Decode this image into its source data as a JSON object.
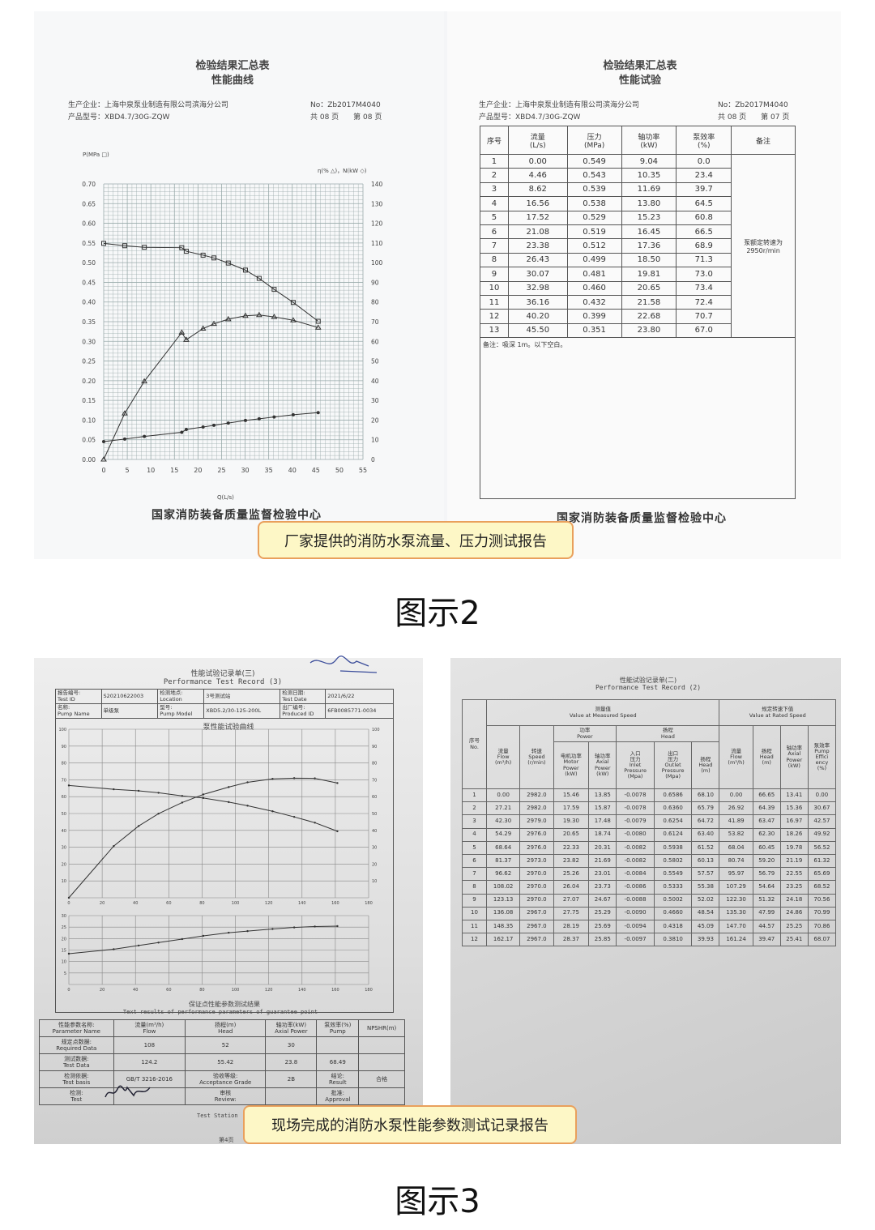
{
  "figure2": {
    "caption": "图示2",
    "callout": "厂家提供的消防水泵流量、压力测试报告",
    "left_page": {
      "title": "检验结果汇总表",
      "subtitle": "性能曲线",
      "company": "生产企业：上海中泉泵业制造有限公司滨海分公司",
      "model": "产品型号：XBD4.7/30G-ZQW",
      "number": "No：Zb2017M4040",
      "pages": "共 08 页　　第 08 页",
      "left_axis_label": "P(MPa □)",
      "right_axis_label": "η(% △)，N(kW ◇)",
      "x_axis_label": "Q(L/s)",
      "footer": "国家消防装备质量监督检验中心"
    },
    "right_page": {
      "title": "检验结果汇总表",
      "subtitle": "性能试验",
      "company": "生产企业：上海中泉泵业制造有限公司滨海分公司",
      "model": "产品型号：XBD4.7/30G-ZQW",
      "number": "No：Zb2017M4040",
      "pages": "共 08 页　　第 07 页",
      "headers": [
        "序号",
        "流量\n(L/s)",
        "压力\n(MPa)",
        "轴功率\n(kW)",
        "泵效率\n(%)",
        "备注"
      ],
      "remark": "泵额定转速为\n2950r/min",
      "note": "备注：吸深 1m。以下空白。",
      "rows": [
        [
          "1",
          "0.00",
          "0.549",
          "9.04",
          "0.0"
        ],
        [
          "2",
          "4.46",
          "0.543",
          "10.35",
          "23.4"
        ],
        [
          "3",
          "8.62",
          "0.539",
          "11.69",
          "39.7"
        ],
        [
          "4",
          "16.56",
          "0.538",
          "13.80",
          "64.5"
        ],
        [
          "5",
          "17.52",
          "0.529",
          "15.23",
          "60.8"
        ],
        [
          "6",
          "21.08",
          "0.519",
          "16.45",
          "66.5"
        ],
        [
          "7",
          "23.38",
          "0.512",
          "17.36",
          "68.9"
        ],
        [
          "8",
          "26.43",
          "0.499",
          "18.50",
          "71.3"
        ],
        [
          "9",
          "30.07",
          "0.481",
          "19.81",
          "73.0"
        ],
        [
          "10",
          "32.98",
          "0.460",
          "20.65",
          "73.4"
        ],
        [
          "11",
          "36.16",
          "0.432",
          "21.58",
          "72.4"
        ],
        [
          "12",
          "40.20",
          "0.399",
          "22.68",
          "70.7"
        ],
        [
          "13",
          "45.50",
          "0.351",
          "23.80",
          "67.0"
        ]
      ],
      "footer": "国家消防装备质量监督检验中心"
    }
  },
  "figure3": {
    "caption": "图示3",
    "callout": "现场完成的消防水泵性能参数测试记录报告",
    "left_page": {
      "title": "性能试验记录单(三)",
      "subtitle": "Performance Test Record (3)",
      "header": [
        [
          "报告编号:\nTest ID",
          "S20210622003",
          "检测地点:\nLocation",
          "3号测试站",
          "检测日期:\nTest Date",
          "2021/6/22"
        ],
        [
          "名称:\nPump Name",
          "单级泵",
          "型号:\nPump Model",
          "XBD5.2/30-125-200L",
          "出厂编号:\nProduced ID",
          "6FB0085771-0034"
        ]
      ],
      "chart_title": "泵性能试验曲线",
      "guarantee_title": "保证点性能参数测试结果",
      "guarantee_subtitle": "Text results of performance parameters of guarantee point",
      "guarantee_rows": [
        [
          "性能参数名称:\nParameter Name",
          "流量(m³/h)\nFlow",
          "扬程(m)\nHead",
          "轴功率(kW)\nAxial Power",
          "泵效率(%)\nPump",
          "NPSHR(m)"
        ],
        [
          "规定点数据:\nRequired Data",
          "108",
          "52",
          "30",
          "",
          ""
        ],
        [
          "测试数据:\nTest Data",
          "124.2",
          "55.42",
          "23.8",
          "68.49",
          ""
        ],
        [
          "检测依据:\nTest basis",
          "GB/T 3216-2016",
          "验收等级:\nAcceptance Grade",
          "2B",
          "结论:\nResult",
          "合格"
        ],
        [
          "检测:\nTest",
          "",
          "审核\nReview:",
          "",
          "批准:\nApproval",
          ""
        ]
      ],
      "station": "Test Station",
      "page_no": "第4页"
    },
    "right_page": {
      "title": "性能试验记录单(二)",
      "subtitle": "Performance Test Record (2)",
      "group_measured": "测量值\nValue at Measured Speed",
      "group_rated": "规定转速下值\nValue at Rated Speed",
      "group_power": "功率\nPower",
      "group_head": "扬程\nHead",
      "headers": [
        "序号\nNo.",
        "流量\nFlow\n(m³/h)",
        "转速\nSpeed\n(r/min)",
        "电机功率\nMotor\nPower\n(kW)",
        "轴功率\nAxial\nPower\n(kW)",
        "入口\n压力\nInlet\nPressure\n(Mpa)",
        "出口\n压力\nOutlet\nPressure\n(Mpa)",
        "扬程\nHead\n(m)",
        "流量\nFlow\n(m³/h)",
        "扬程\nHead\n(m)",
        "轴功率\nAxial\nPower\n(kW)",
        "泵效率\nPump\nEffici\nency\n(%)"
      ],
      "rows": [
        [
          "1",
          "0.00",
          "2982.0",
          "15.46",
          "13.85",
          "-0.0078",
          "0.6586",
          "68.10",
          "0.00",
          "66.65",
          "13.41",
          "0.00"
        ],
        [
          "2",
          "27.21",
          "2982.0",
          "17.59",
          "15.87",
          "-0.0078",
          "0.6360",
          "65.79",
          "26.92",
          "64.39",
          "15.36",
          "30.67"
        ],
        [
          "3",
          "42.30",
          "2979.0",
          "19.30",
          "17.48",
          "-0.0079",
          "0.6254",
          "64.72",
          "41.89",
          "63.47",
          "16.97",
          "42.57"
        ],
        [
          "4",
          "54.29",
          "2976.0",
          "20.65",
          "18.74",
          "-0.0080",
          "0.6124",
          "63.40",
          "53.82",
          "62.30",
          "18.26",
          "49.92"
        ],
        [
          "5",
          "68.64",
          "2976.0",
          "22.33",
          "20.31",
          "-0.0082",
          "0.5938",
          "61.52",
          "68.04",
          "60.45",
          "19.78",
          "56.52"
        ],
        [
          "6",
          "81.37",
          "2973.0",
          "23.82",
          "21.69",
          "-0.0082",
          "0.5802",
          "60.13",
          "80.74",
          "59.20",
          "21.19",
          "61.32"
        ],
        [
          "7",
          "96.62",
          "2970.0",
          "25.26",
          "23.01",
          "-0.0084",
          "0.5549",
          "57.57",
          "95.97",
          "56.79",
          "22.55",
          "65.69"
        ],
        [
          "8",
          "108.02",
          "2970.0",
          "26.04",
          "23.73",
          "-0.0086",
          "0.5333",
          "55.38",
          "107.29",
          "54.64",
          "23.25",
          "68.52"
        ],
        [
          "9",
          "123.13",
          "2970.0",
          "27.07",
          "24.67",
          "-0.0088",
          "0.5002",
          "52.02",
          "122.30",
          "51.32",
          "24.18",
          "70.56"
        ],
        [
          "10",
          "136.08",
          "2967.0",
          "27.75",
          "25.29",
          "-0.0090",
          "0.4660",
          "48.54",
          "135.30",
          "47.99",
          "24.86",
          "70.99"
        ],
        [
          "11",
          "148.35",
          "2967.0",
          "28.19",
          "25.69",
          "-0.0094",
          "0.4318",
          "45.09",
          "147.70",
          "44.57",
          "25.25",
          "70.86"
        ],
        [
          "12",
          "162.17",
          "2967.0",
          "28.37",
          "25.85",
          "-0.0097",
          "0.3810",
          "39.93",
          "161.24",
          "39.47",
          "25.41",
          "68.07"
        ]
      ]
    }
  },
  "chart_data": [
    {
      "type": "line",
      "title": "性能曲线",
      "xlabel": "Q(L/s)",
      "ylabel": "P(MPa □)",
      "y2label": "η(% △)，N(kW ◇)",
      "xlim": [
        0,
        55
      ],
      "ylim": [
        0,
        0.7
      ],
      "y2lim": [
        0,
        140
      ],
      "x_ticks": [
        "0",
        "5",
        "10",
        "15",
        "20",
        "25",
        "30",
        "35",
        "40",
        "45",
        "50",
        "55"
      ],
      "y_ticks": [
        "0.00",
        "0.05",
        "0.10",
        "0.15",
        "0.20",
        "0.25",
        "0.30",
        "0.35",
        "0.40",
        "0.45",
        "0.50",
        "0.55",
        "0.60",
        "0.65",
        "0.70"
      ],
      "y2_ticks": [
        "0",
        "10",
        "20",
        "30",
        "40",
        "50",
        "60",
        "70",
        "80",
        "90",
        "100",
        "110",
        "120",
        "130",
        "140"
      ],
      "grid": true,
      "x": [
        0.0,
        4.46,
        8.62,
        16.56,
        17.52,
        21.08,
        23.38,
        26.43,
        30.07,
        32.98,
        36.16,
        40.2,
        45.5
      ],
      "series": [
        {
          "name": "P",
          "axis": "left",
          "values": [
            0.549,
            0.543,
            0.539,
            0.538,
            0.529,
            0.519,
            0.512,
            0.499,
            0.481,
            0.46,
            0.432,
            0.399,
            0.351
          ]
        },
        {
          "name": "η",
          "axis": "right",
          "values": [
            0.0,
            23.4,
            39.7,
            64.5,
            60.8,
            66.5,
            68.9,
            71.3,
            73.0,
            73.4,
            72.4,
            70.7,
            67.0
          ]
        },
        {
          "name": "N",
          "axis": "right",
          "values": [
            9.04,
            10.35,
            11.69,
            13.8,
            15.23,
            16.45,
            17.36,
            18.5,
            19.81,
            20.65,
            21.58,
            22.68,
            23.8
          ]
        }
      ]
    },
    {
      "type": "line",
      "title": "泵性能试验曲线",
      "xlim": [
        0,
        180
      ],
      "ylim": [
        0,
        100
      ],
      "y2lim": [
        0,
        100
      ],
      "x_ticks": [
        "0",
        "20",
        "40",
        "60",
        "80",
        "100",
        "120",
        "140",
        "160",
        "180"
      ],
      "y_ticks": [
        "10",
        "20",
        "30",
        "40",
        "50",
        "60",
        "70",
        "80",
        "90",
        "100"
      ],
      "power_ylim": [
        0,
        30
      ],
      "power_ticks": [
        "5",
        "10",
        "15",
        "20",
        "25",
        "30"
      ],
      "grid": true,
      "x": [
        0.0,
        26.92,
        41.89,
        53.82,
        68.04,
        80.74,
        95.97,
        107.29,
        122.3,
        135.3,
        147.7,
        161.24
      ],
      "series": [
        {
          "axis": "left",
          "values": [
            66.65,
            64.39,
            63.47,
            62.3,
            60.45,
            59.2,
            56.79,
            54.64,
            51.32,
            47.99,
            44.57,
            39.47
          ]
        },
        {
          "axis": "right",
          "values": [
            0.0,
            30.67,
            42.57,
            49.92,
            56.52,
            61.32,
            65.69,
            68.52,
            70.56,
            70.99,
            70.86,
            68.07
          ]
        },
        {
          "axis": "power",
          "values": [
            13.41,
            15.36,
            16.97,
            18.26,
            19.78,
            21.19,
            22.55,
            23.25,
            24.18,
            24.86,
            25.25,
            25.41
          ]
        }
      ]
    }
  ]
}
